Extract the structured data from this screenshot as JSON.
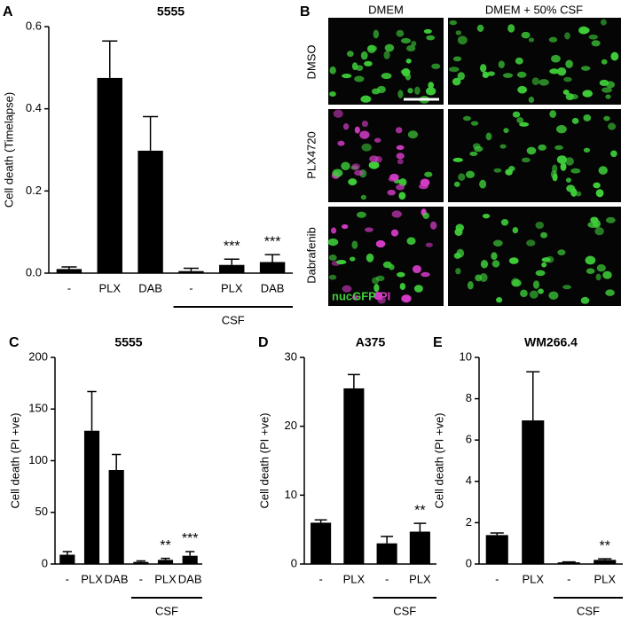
{
  "chart_data": [
    {
      "type": "bar",
      "panel_label": "A",
      "title": "5555",
      "y_label": "Cell death (Timelapse)",
      "categories": [
        "-",
        "PLX",
        "DAB",
        "-",
        "PLX",
        "DAB"
      ],
      "values": [
        0.01,
        0.475,
        0.298,
        0.005,
        0.02,
        0.027
      ],
      "errors": [
        0.005,
        0.09,
        0.083,
        0.007,
        0.014,
        0.018
      ],
      "annotations": [
        null,
        null,
        null,
        null,
        "***",
        "***"
      ],
      "group_label": "CSF",
      "color": "#000000",
      "ylim": [
        0,
        0.6
      ],
      "yticks": [
        {
          "value": 0,
          "label": "0.0"
        },
        0.2,
        0.4,
        0.6
      ]
    },
    {
      "type": "bar",
      "panel_label": "C",
      "title": "5555",
      "y_label": "Cell death (PI +ve)",
      "categories": [
        "-",
        "PLX",
        "DAB",
        "-",
        "PLX",
        "DAB"
      ],
      "values": [
        9,
        129,
        91,
        2,
        4,
        8
      ],
      "errors": [
        3,
        38,
        15,
        1,
        1.5,
        4
      ],
      "annotations": [
        null,
        null,
        null,
        null,
        "**",
        "***"
      ],
      "group_label": "CSF",
      "color": "#000000",
      "ylim": [
        0,
        200
      ],
      "yticks": [
        0,
        50,
        100,
        150,
        200
      ]
    },
    {
      "type": "bar",
      "panel_label": "D",
      "title": "A375",
      "y_label": "Cell death (PI +ve)",
      "categories": [
        "-",
        "PLX",
        "-",
        "PLX"
      ],
      "values": [
        6,
        25.5,
        3,
        4.7
      ],
      "errors": [
        0.4,
        2,
        1,
        1.2
      ],
      "annotations": [
        null,
        null,
        null,
        "**"
      ],
      "group_label": "CSF",
      "color": "#000000",
      "ylim": [
        0,
        30
      ],
      "yticks": [
        0,
        10,
        20,
        30
      ]
    },
    {
      "type": "bar",
      "panel_label": "E",
      "title": "WM266.4",
      "y_label": "Cell death (PI +ve)",
      "categories": [
        "-",
        "PLX",
        "-",
        "PLX"
      ],
      "values": [
        1.4,
        6.95,
        0.08,
        0.2
      ],
      "errors": [
        0.1,
        2.35,
        0.02,
        0.05
      ],
      "annotations": [
        null,
        null,
        null,
        "**"
      ],
      "group_label": "CSF",
      "color": "#000000",
      "ylim": [
        0,
        10
      ],
      "yticks": [
        0,
        2,
        4,
        6,
        8,
        10
      ]
    }
  ],
  "panel_b": {
    "panel_label": "B",
    "columns": [
      "DMEM",
      "DMEM + 50% CSF"
    ],
    "rows": [
      "DMSO",
      "PLX4720",
      "Dabrafenib"
    ],
    "legend": [
      "nucGFP",
      "PI"
    ]
  }
}
